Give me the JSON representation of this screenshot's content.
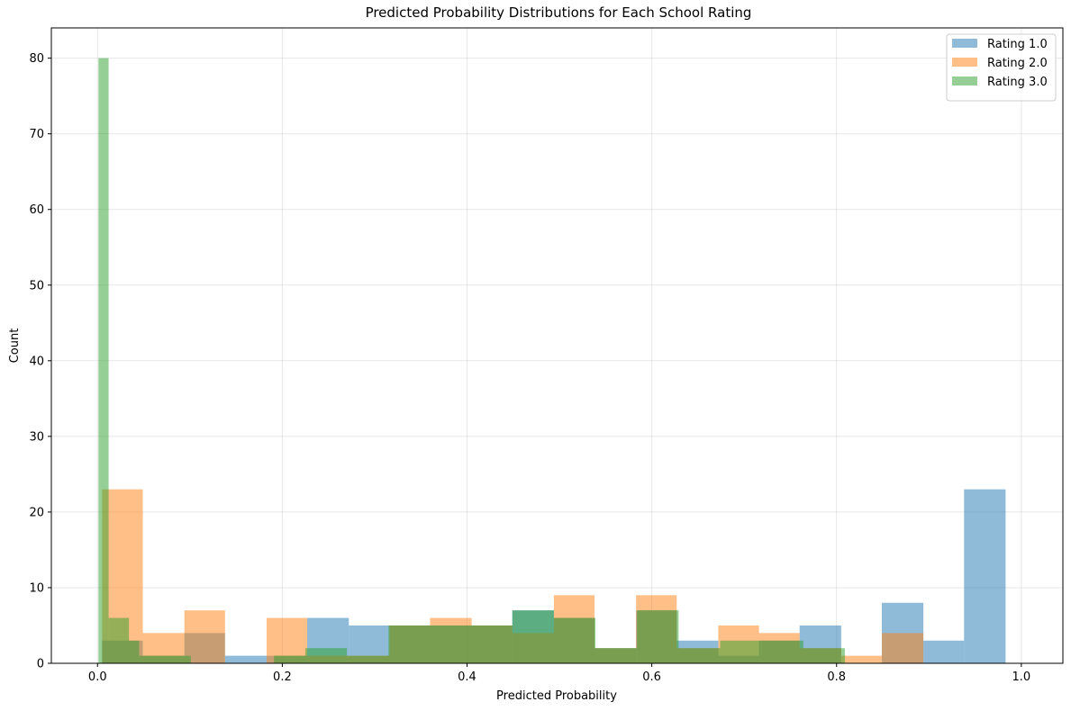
{
  "chart_data": {
    "type": "bar",
    "title": "Predicted Probability Distributions for Each School Rating",
    "xlabel": "Predicted Probability",
    "ylabel": "Count",
    "xlim": [
      -0.05,
      1.045
    ],
    "ylim": [
      0,
      84
    ],
    "xticks": [
      0.0,
      0.2,
      0.4,
      0.6,
      0.8,
      1.0
    ],
    "xtick_labels": [
      "0.0",
      "0.2",
      "0.4",
      "0.6",
      "0.8",
      "1.0"
    ],
    "yticks": [
      0,
      10,
      20,
      30,
      40,
      50,
      60,
      70,
      80
    ],
    "ytick_labels": [
      "0",
      "10",
      "20",
      "30",
      "40",
      "50",
      "60",
      "70",
      "80"
    ],
    "grid": true,
    "legend_position": "top-right",
    "series": [
      {
        "name": "Rating 1.0",
        "color": "#1f77b4",
        "bins": [
          [
            0.005,
            0.049,
            3
          ],
          [
            0.049,
            0.094,
            1
          ],
          [
            0.094,
            0.138,
            4
          ],
          [
            0.138,
            0.183,
            1
          ],
          [
            0.183,
            0.227,
            1
          ],
          [
            0.227,
            0.272,
            6
          ],
          [
            0.272,
            0.316,
            5
          ],
          [
            0.316,
            0.36,
            5
          ],
          [
            0.36,
            0.405,
            5
          ],
          [
            0.405,
            0.449,
            5
          ],
          [
            0.449,
            0.494,
            7
          ],
          [
            0.494,
            0.538,
            6
          ],
          [
            0.538,
            0.583,
            2
          ],
          [
            0.583,
            0.627,
            7
          ],
          [
            0.627,
            0.672,
            3
          ],
          [
            0.672,
            0.716,
            1
          ],
          [
            0.716,
            0.76,
            3
          ],
          [
            0.76,
            0.805,
            5
          ],
          [
            0.805,
            0.849,
            0
          ],
          [
            0.849,
            0.894,
            8
          ],
          [
            0.894,
            0.938,
            3
          ],
          [
            0.938,
            0.983,
            23
          ]
        ]
      },
      {
        "name": "Rating 2.0",
        "color": "#ff7f0e",
        "bins": [
          [
            0.005,
            0.049,
            23
          ],
          [
            0.049,
            0.094,
            4
          ],
          [
            0.094,
            0.138,
            7
          ],
          [
            0.138,
            0.183,
            0
          ],
          [
            0.183,
            0.227,
            6
          ],
          [
            0.227,
            0.272,
            1
          ],
          [
            0.272,
            0.316,
            1
          ],
          [
            0.316,
            0.36,
            5
          ],
          [
            0.36,
            0.405,
            6
          ],
          [
            0.405,
            0.449,
            5
          ],
          [
            0.449,
            0.494,
            4
          ],
          [
            0.494,
            0.538,
            9
          ],
          [
            0.538,
            0.583,
            2
          ],
          [
            0.583,
            0.627,
            9
          ],
          [
            0.627,
            0.672,
            2
          ],
          [
            0.672,
            0.716,
            5
          ],
          [
            0.716,
            0.76,
            4
          ],
          [
            0.76,
            0.805,
            2
          ],
          [
            0.805,
            0.849,
            1
          ],
          [
            0.849,
            0.894,
            4
          ]
        ]
      },
      {
        "name": "Rating 3.0",
        "color": "#2ca02c",
        "bins": [
          [
            0.001,
            0.012,
            80
          ],
          [
            0.012,
            0.034,
            6
          ],
          [
            0.034,
            0.045,
            3
          ],
          [
            0.045,
            0.101,
            1
          ],
          [
            0.191,
            0.213,
            1
          ],
          [
            0.213,
            0.225,
            1
          ],
          [
            0.225,
            0.27,
            2
          ],
          [
            0.27,
            0.315,
            1
          ],
          [
            0.315,
            0.36,
            5
          ],
          [
            0.36,
            0.404,
            5
          ],
          [
            0.404,
            0.449,
            5
          ],
          [
            0.449,
            0.494,
            7
          ],
          [
            0.494,
            0.539,
            6
          ],
          [
            0.539,
            0.584,
            2
          ],
          [
            0.584,
            0.629,
            7
          ],
          [
            0.629,
            0.674,
            2
          ],
          [
            0.674,
            0.719,
            3
          ],
          [
            0.719,
            0.764,
            3
          ],
          [
            0.764,
            0.809,
            2
          ]
        ]
      }
    ]
  }
}
